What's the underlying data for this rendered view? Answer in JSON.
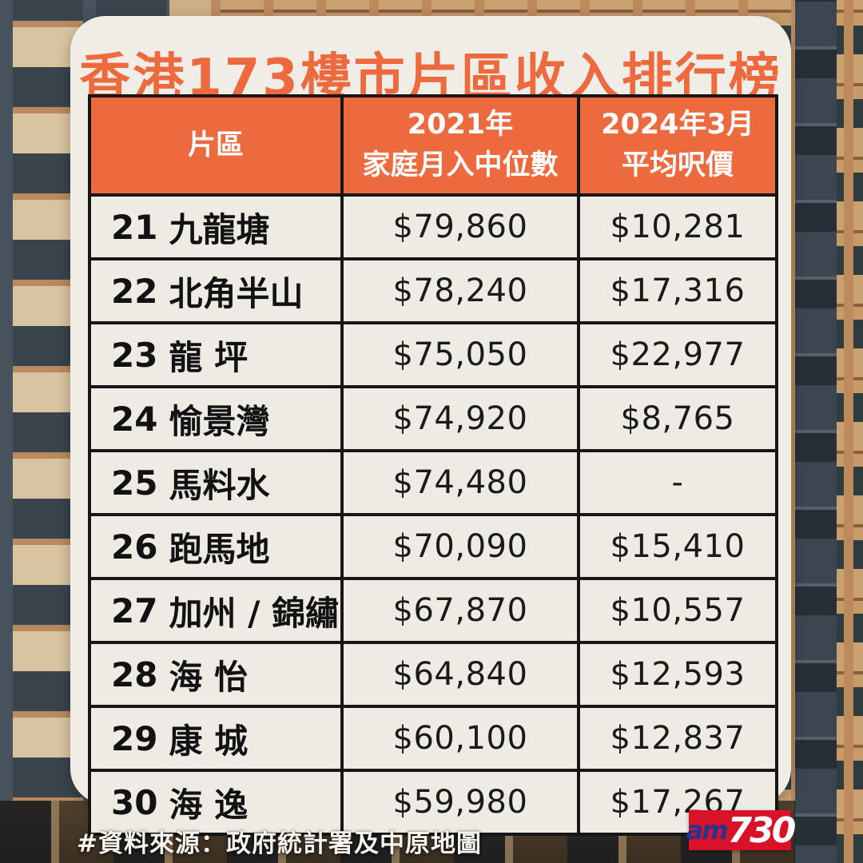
{
  "title": "香港173樓市片區收入排行榜",
  "table": {
    "header": {
      "district": "片區",
      "income_line1": "2021年",
      "income_line2": "家庭月入中位數",
      "price_line1": "2024年3月",
      "price_line2": "平均呎價"
    },
    "rows": [
      {
        "rank": "21",
        "name": "九龍塘",
        "income": "$79,860",
        "price": "$10,281"
      },
      {
        "rank": "22",
        "name": "北角半山",
        "income": "$78,240",
        "price": "$17,316"
      },
      {
        "rank": "23",
        "name": "龍 坪",
        "income": "$75,050",
        "price": "$22,977"
      },
      {
        "rank": "24",
        "name": "愉景灣",
        "income": "$74,920",
        "price": "$8,765"
      },
      {
        "rank": "25",
        "name": "馬料水",
        "income": "$74,480",
        "price": "-"
      },
      {
        "rank": "26",
        "name": "跑馬地",
        "income": "$70,090",
        "price": "$15,410"
      },
      {
        "rank": "27",
        "name": "加州 / 錦繡",
        "income": "$67,870",
        "price": "$10,557"
      },
      {
        "rank": "28",
        "name": "海 怡",
        "income": "$64,840",
        "price": "$12,593"
      },
      {
        "rank": "29",
        "name": "康 城",
        "income": "$60,100",
        "price": "$12,837"
      },
      {
        "rank": "30",
        "name": "海 逸",
        "income": "$59,980",
        "price": "$17,267"
      }
    ]
  },
  "footer": {
    "source": "#資料來源：政府統計署及中原地圖"
  },
  "logo": {
    "prefix": "am",
    "suffix": "730"
  },
  "colors": {
    "accent_orange": "#ED6A3F",
    "card_background": "#F0EDE7",
    "cell_background": "#EDEBE4",
    "border_black": "#161616",
    "logo_red": "#D9122A",
    "logo_blue": "#23358F"
  },
  "chart_data": {
    "type": "table",
    "title": "香港173樓市片區收入排行榜",
    "columns": [
      "片區",
      "2021年 家庭月入中位數",
      "2024年3月 平均呎價"
    ],
    "rows": [
      [
        "21 九龍塘",
        "$79,860",
        "$10,281"
      ],
      [
        "22 北角半山",
        "$78,240",
        "$17,316"
      ],
      [
        "23 龍 坪",
        "$75,050",
        "$22,977"
      ],
      [
        "24 愉景灣",
        "$74,920",
        "$8,765"
      ],
      [
        "25 馬料水",
        "$74,480",
        "-"
      ],
      [
        "26 跑馬地",
        "$70,090",
        "$15,410"
      ],
      [
        "27 加州 / 錦繡",
        "$67,870",
        "$10,557"
      ],
      [
        "28 海 怡",
        "$64,840",
        "$12,593"
      ],
      [
        "29 康 城",
        "$60,100",
        "$12,837"
      ],
      [
        "30 海 逸",
        "$59,980",
        "$17,267"
      ]
    ],
    "income_values": [
      79860,
      78240,
      75050,
      74920,
      74480,
      70090,
      67870,
      64840,
      60100,
      59980
    ],
    "price_values": [
      10281,
      17316,
      22977,
      8765,
      null,
      15410,
      10557,
      12593,
      12837,
      17267
    ],
    "source": "#資料來源：政府統計署及中原地圖"
  }
}
